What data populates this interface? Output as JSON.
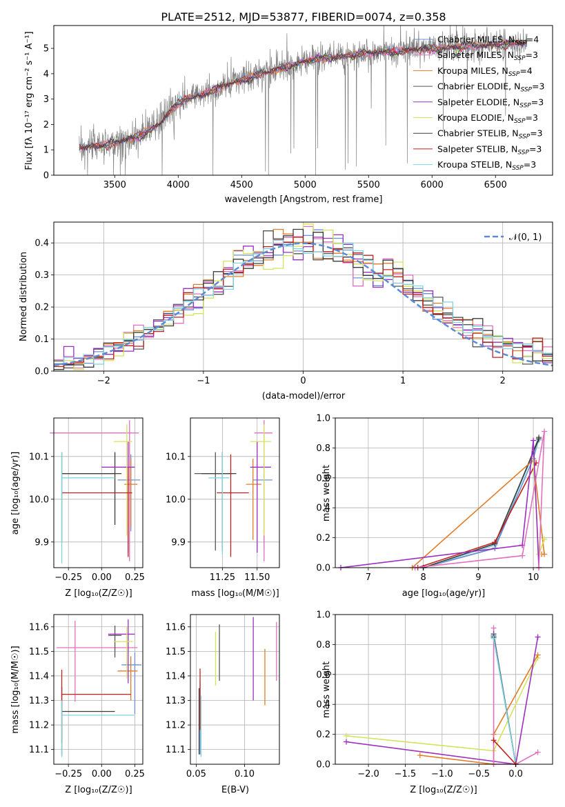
{
  "figure_title": "PLATE=2512, MJD=53877, FIBERID=0074, z=0.358",
  "colors": {
    "c1": "#6a8fd8",
    "c2": "#e26fbf",
    "c3": "#e07b28",
    "c4": "#555555",
    "c5": "#9b2fbf",
    "c6": "#d4e35a",
    "c7": "#3b3b3b",
    "c8": "#c41e1e",
    "c9": "#7fd4e0",
    "spec": "#808080",
    "normal": "#5b8bd6"
  },
  "chart_data": [
    {
      "type": "line",
      "id": "spectrum",
      "title": "PLATE=2512, MJD=53877, FIBERID=0074, z=0.358",
      "xlabel": "wavelength [Angstrom, rest frame]",
      "ylabel": "Flux [fλ 10⁻¹⁷ erg cm⁻² s⁻¹ A⁻¹]",
      "xlim": [
        3020,
        6950
      ],
      "ylim": [
        0,
        5.9
      ],
      "xticks": [
        "3500",
        "4000",
        "4500",
        "5000",
        "5500",
        "6000",
        "6500"
      ],
      "yticks": [
        "0",
        "1",
        "2",
        "3",
        "4",
        "5"
      ],
      "legend": {
        "position": "top-right",
        "entries": [
          {
            "label": "Chabrier MILES, N_SSP=4",
            "color": "c1"
          },
          {
            "label": "Salpeter MILES, N_SSP=3",
            "color": "c2"
          },
          {
            "label": "Kroupa MILES, N_SSP=4",
            "color": "c3"
          },
          {
            "label": "Chabrier ELODIE, N_SSP=3",
            "color": "c4"
          },
          {
            "label": "Salpeter ELODIE, N_SSP=3",
            "color": "c5"
          },
          {
            "label": "Kroupa ELODIE, N_SSP=3",
            "color": "c6"
          },
          {
            "label": "Chabrier STELIB, N_SSP=3",
            "color": "c7"
          },
          {
            "label": "Salpeter STELIB, N_SSP=3",
            "color": "c8"
          },
          {
            "label": "Kroupa STELIB, N_SSP=3",
            "color": "c9"
          }
        ]
      },
      "model_trend": {
        "x": [
          3220,
          3500,
          3700,
          3850,
          3950,
          4050,
          4200,
          4400,
          4600,
          4800,
          5000,
          5300,
          5600,
          5900,
          6200,
          6500,
          6750
        ],
        "y": [
          1.1,
          1.25,
          1.55,
          2.0,
          2.6,
          3.0,
          3.2,
          3.6,
          3.9,
          4.2,
          4.5,
          4.7,
          4.85,
          4.95,
          5.05,
          5.15,
          5.2
        ]
      }
    },
    {
      "type": "bar",
      "id": "residuals",
      "xlabel": "(data-model)/error",
      "ylabel": "Normed distribution",
      "xlim": [
        -2.5,
        2.5
      ],
      "ylim": [
        0,
        0.465
      ],
      "xticks": [
        "−2",
        "−1",
        "0",
        "1",
        "2"
      ],
      "yticks": [
        "0.0",
        "0.1",
        "0.2",
        "0.3",
        "0.4"
      ],
      "legend": {
        "position": "top-right",
        "entries": [
          {
            "label": "𝒩(0, 1)",
            "color": "normal"
          }
        ]
      },
      "bin_width": 0.1
    },
    {
      "type": "scatter",
      "id": "age_vs_Z",
      "xlabel": "Z [log₁₀(Z/Z☉)]",
      "ylabel": "age  [log₁₀(age/yr)]",
      "xlim": [
        -0.36,
        0.31
      ],
      "ylim": [
        9.84,
        10.19
      ],
      "xticks": [
        "−0.25",
        "0.00",
        "0.25"
      ],
      "yticks": [
        "9.9",
        "10.0",
        "10.1"
      ],
      "points": [
        {
          "x": -0.3,
          "y": 10.06,
          "xerr": [
            0.0,
            0.4
          ],
          "yerr": [
            0.16,
            0.05
          ],
          "color": "c4"
        },
        {
          "x": 0.22,
          "y": 10.045,
          "xerr": [
            0.1,
            0.07
          ],
          "yerr": [
            0.12,
            0.06
          ],
          "color": "c1"
        },
        {
          "x": 0.21,
          "y": 10.155,
          "xerr": [
            0.6,
            0.07
          ],
          "yerr": [
            0.3,
            0.03
          ],
          "color": "c2"
        },
        {
          "x": 0.22,
          "y": 10.035,
          "xerr": [
            0.05,
            0.05
          ],
          "yerr": [
            0.1,
            0.06
          ],
          "color": "c3"
        },
        {
          "x": 0.1,
          "y": 10.06,
          "xerr": [
            0.4,
            0.05
          ],
          "yerr": [
            0.12,
            0.05
          ],
          "color": "c7"
        },
        {
          "x": 0.2,
          "y": 10.075,
          "xerr": [
            0.2,
            0.05
          ],
          "yerr": [
            0.2,
            0.06
          ],
          "color": "c5"
        },
        {
          "x": 0.19,
          "y": 10.135,
          "xerr": [
            0.1,
            0.04
          ],
          "yerr": [
            0.22,
            0.04
          ],
          "color": "c6"
        },
        {
          "x": 0.2,
          "y": 10.015,
          "xerr": [
            0.5,
            0.03
          ],
          "yerr": [
            0.15,
            0.06
          ],
          "color": "c8"
        },
        {
          "x": -0.3,
          "y": 10.05,
          "xerr": [
            0.0,
            0.4
          ],
          "yerr": [
            0.2,
            0.06
          ],
          "color": "c9"
        }
      ]
    },
    {
      "type": "scatter",
      "id": "age_vs_mass",
      "xlabel": "mass [log₁₀(M/M☉)]",
      "ylabel": "",
      "xlim": [
        11.02,
        11.66
      ],
      "ylim": [
        9.84,
        10.19
      ],
      "xticks": [
        "11.25",
        "11.50"
      ],
      "yticks": [
        "9.9",
        "10.0",
        "10.1"
      ],
      "points": [
        {
          "x": 11.55,
          "y": 10.045,
          "xerr": [
            0.08,
            0.06
          ],
          "yerr": [
            0.16,
            0.04
          ],
          "color": "c1"
        },
        {
          "x": 11.55,
          "y": 10.155,
          "xerr": [
            0.07,
            0.06
          ],
          "yerr": [
            0.3,
            0.03
          ],
          "color": "c2"
        },
        {
          "x": 11.47,
          "y": 10.035,
          "xerr": [
            0.05,
            0.06
          ],
          "yerr": [
            0.13,
            0.06
          ],
          "color": "c3"
        },
        {
          "x": 11.2,
          "y": 10.06,
          "xerr": [
            0.15,
            0.12
          ],
          "yerr": [
            0.18,
            0.05
          ],
          "color": "c4"
        },
        {
          "x": 11.5,
          "y": 10.075,
          "xerr": [
            0.05,
            0.1
          ],
          "yerr": [
            0.2,
            0.06
          ],
          "color": "c5"
        },
        {
          "x": 11.55,
          "y": 10.135,
          "xerr": [
            0.1,
            0.05
          ],
          "yerr": [
            0.22,
            0.04
          ],
          "color": "c6"
        },
        {
          "x": 11.25,
          "y": 10.06,
          "xerr": [
            0.15,
            0.1
          ],
          "yerr": [
            0.18,
            0.05
          ],
          "color": "c7"
        },
        {
          "x": 11.31,
          "y": 10.015,
          "xerr": [
            0.1,
            0.13
          ],
          "yerr": [
            0.15,
            0.09
          ],
          "color": "c8"
        },
        {
          "x": 11.25,
          "y": 10.05,
          "xerr": [
            0.1,
            0.05
          ],
          "yerr": [
            0.18,
            0.06
          ],
          "color": "c9"
        }
      ]
    },
    {
      "type": "line",
      "id": "weight_vs_age",
      "xlabel": "age  [log₁₀(age/yr)]",
      "ylabel": "mass weight",
      "xlim": [
        6.4,
        10.35
      ],
      "ylim": [
        0,
        1.0
      ],
      "xticks": [
        "7",
        "8",
        "9",
        "10"
      ],
      "yticks": [
        "0.0",
        "0.2",
        "0.4",
        "0.6",
        "0.8",
        "1.0"
      ],
      "series": [
        {
          "color": "c4",
          "x": [
            8.0,
            9.3,
            10.1
          ],
          "y": [
            0.0,
            0.13,
            0.87
          ]
        },
        {
          "color": "c1",
          "x": [
            8.0,
            9.3,
            10.0,
            10.1
          ],
          "y": [
            0.0,
            0.13,
            0.73,
            0.86
          ]
        },
        {
          "color": "c9",
          "x": [
            8.0,
            9.3,
            10.1
          ],
          "y": [
            0.0,
            0.15,
            0.85
          ]
        },
        {
          "color": "c7",
          "x": [
            8.0,
            9.3,
            10.1
          ],
          "y": [
            0.0,
            0.16,
            0.86
          ]
        },
        {
          "color": "c8",
          "x": [
            7.9,
            9.3,
            10.05
          ],
          "y": [
            0.0,
            0.17,
            0.7
          ]
        },
        {
          "color": "c3",
          "x": [
            7.8,
            10.0,
            10.2,
            10.15
          ],
          "y": [
            0.0,
            0.72,
            0.09,
            0.09
          ]
        },
        {
          "color": "c6",
          "x": [
            10.0,
            10.1,
            10.2
          ],
          "y": [
            0.72,
            0.09,
            0.19
          ]
        },
        {
          "color": "c5",
          "x": [
            6.5,
            9.8,
            10.0,
            10.1
          ],
          "y": [
            0.0,
            0.15,
            0.85,
            0.0
          ]
        },
        {
          "color": "c2",
          "x": [
            7.85,
            9.8,
            10.2,
            10.1
          ],
          "y": [
            0.0,
            0.08,
            0.91,
            0.0
          ]
        }
      ]
    },
    {
      "type": "scatter",
      "id": "mass_vs_Z",
      "xlabel": "Z [log₁₀(Z/Z☉)]",
      "ylabel": "mass [log₁₀(M/M☉)]",
      "xlim": [
        -0.36,
        0.31
      ],
      "ylim": [
        11.04,
        11.65
      ],
      "xticks": [
        "−0.25",
        "0.00",
        "0.25"
      ],
      "yticks": [
        "11.1",
        "11.2",
        "11.3",
        "11.4",
        "11.5",
        "11.6"
      ],
      "points": [
        {
          "x": 0.25,
          "y": 11.445,
          "xerr": [
            0.1,
            0.05
          ],
          "yerr": [
            0.2,
            0.05
          ],
          "color": "c1"
        },
        {
          "x": -0.2,
          "y": 11.515,
          "xerr": [
            0.14,
            0.47
          ],
          "yerr": [
            0.22,
            0.11
          ],
          "color": "c2"
        },
        {
          "x": 0.22,
          "y": 11.42,
          "xerr": [
            0.1,
            0.05
          ],
          "yerr": [
            0.12,
            0.06
          ],
          "color": "c3"
        },
        {
          "x": 0.1,
          "y": 11.565,
          "xerr": [
            0.05,
            0.05
          ],
          "yerr": [
            0.09,
            0.04
          ],
          "color": "c4"
        },
        {
          "x": 0.2,
          "y": 11.57,
          "xerr": [
            0.15,
            0.05
          ],
          "yerr": [
            0.2,
            0.06
          ],
          "color": "c5"
        },
        {
          "x": 0.19,
          "y": 11.54,
          "xerr": [
            0.1,
            0.05
          ],
          "yerr": [
            0.15,
            0.06
          ],
          "color": "c6"
        },
        {
          "x": -0.3,
          "y": 11.255,
          "xerr": [
            0.0,
            0.4
          ],
          "yerr": [
            0.18,
            0.1
          ],
          "color": "c7"
        },
        {
          "x": -0.3,
          "y": 11.325,
          "xerr": [
            0.0,
            0.52
          ],
          "yerr": [
            0.2,
            0.1
          ],
          "color": "c8"
        },
        {
          "x": -0.3,
          "y": 11.24,
          "xerr": [
            0.0,
            0.55
          ],
          "yerr": [
            0.17,
            0.06
          ],
          "color": "c9"
        }
      ]
    },
    {
      "type": "scatter",
      "id": "mass_vs_EBV",
      "xlabel": "E(B-V)",
      "ylabel": "",
      "xlim": [
        0.044,
        0.136
      ],
      "ylim": [
        11.04,
        11.65
      ],
      "xticks": [
        "0.05",
        "0.10"
      ],
      "yticks": [
        "11.1",
        "11.2",
        "11.3",
        "11.4",
        "11.5",
        "11.6"
      ],
      "points": [
        {
          "x": 0.054,
          "y": 11.28,
          "xerr": [
            0,
            0
          ],
          "yerr": [
            0.2,
            0.1
          ],
          "color": "c1"
        },
        {
          "x": 0.133,
          "y": 11.5,
          "xerr": [
            0,
            0
          ],
          "yerr": [
            0.12,
            0.12
          ],
          "color": "c2"
        },
        {
          "x": 0.121,
          "y": 11.4,
          "xerr": [
            0,
            0
          ],
          "yerr": [
            0.12,
            0.11
          ],
          "color": "c3"
        },
        {
          "x": 0.074,
          "y": 11.5,
          "xerr": [
            0,
            0
          ],
          "yerr": [
            0.12,
            0.11
          ],
          "color": "c4"
        },
        {
          "x": 0.109,
          "y": 11.47,
          "xerr": [
            0,
            0
          ],
          "yerr": [
            0.17,
            0.17
          ],
          "color": "c5"
        },
        {
          "x": 0.07,
          "y": 11.47,
          "xerr": [
            0,
            0
          ],
          "yerr": [
            0.11,
            0.11
          ],
          "color": "c6"
        },
        {
          "x": 0.053,
          "y": 11.25,
          "xerr": [
            0,
            0
          ],
          "yerr": [
            0.17,
            0.1
          ],
          "color": "c7"
        },
        {
          "x": 0.054,
          "y": 11.33,
          "xerr": [
            0,
            0
          ],
          "yerr": [
            0.15,
            0.1
          ],
          "color": "c8"
        },
        {
          "x": 0.055,
          "y": 11.22,
          "xerr": [
            0,
            0
          ],
          "yerr": [
            0.15,
            0.1
          ],
          "color": "c9"
        }
      ]
    },
    {
      "type": "line",
      "id": "weight_vs_Z",
      "xlabel": "Z [log₁₀(Z/Z☉)]",
      "ylabel": "mass weight",
      "xlim": [
        -2.45,
        0.5
      ],
      "ylim": [
        0,
        1.0
      ],
      "xticks": [
        "−2.0",
        "−1.5",
        "−1.0",
        "−0.5",
        "0.0"
      ],
      "yticks": [
        "0.0",
        "0.2",
        "0.4",
        "0.6",
        "0.8",
        "1.0"
      ],
      "series": [
        {
          "color": "c6",
          "x": [
            -2.3,
            -0.3,
            0.3
          ],
          "y": [
            0.19,
            0.09,
            0.71
          ]
        },
        {
          "color": "c3",
          "x": [
            -1.3,
            -0.3,
            -0.3,
            0.3
          ],
          "y": [
            0.06,
            0.0,
            0.2,
            0.73
          ]
        },
        {
          "color": "c5",
          "x": [
            -2.3,
            0.0,
            0.3
          ],
          "y": [
            0.15,
            0.0,
            0.85
          ]
        },
        {
          "color": "c2",
          "x": [
            -0.3,
            -0.3,
            0.0,
            0.3
          ],
          "y": [
            0.91,
            0.0,
            0.0,
            0.08
          ]
        },
        {
          "color": "c4",
          "x": [
            -0.3,
            0.0
          ],
          "y": [
            0.87,
            0.0
          ]
        },
        {
          "color": "c1",
          "x": [
            -0.3,
            0.0
          ],
          "y": [
            0.86,
            0.0
          ]
        },
        {
          "color": "c7",
          "x": [
            -0.3,
            0.0
          ],
          "y": [
            0.85,
            0.0
          ]
        },
        {
          "color": "c9",
          "x": [
            -0.3,
            0.0
          ],
          "y": [
            0.84,
            0.0
          ]
        },
        {
          "color": "c8",
          "x": [
            -0.3,
            0.0
          ],
          "y": [
            0.16,
            0.0
          ]
        }
      ]
    }
  ]
}
